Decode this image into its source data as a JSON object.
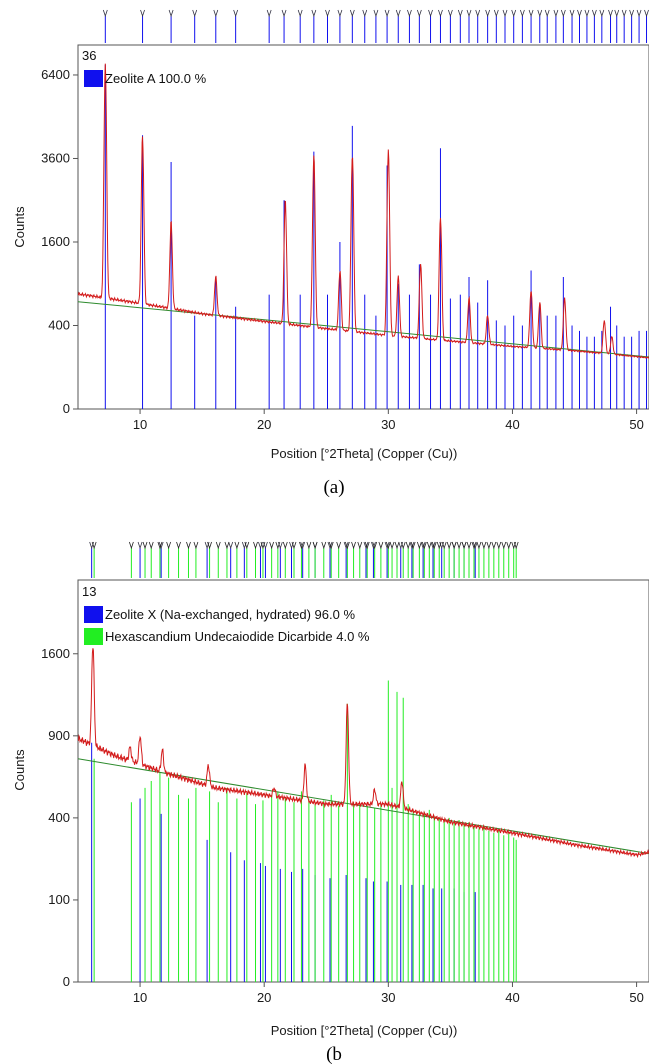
{
  "chart_data": [
    {
      "panel_label": "(a)",
      "corner_number": "36",
      "type": "line",
      "xlabel": "Position [°2Theta] (Copper (Cu))",
      "ylabel": "Counts",
      "xlim": [
        5,
        51
      ],
      "x_ticks": [
        "10",
        "20",
        "30",
        "40",
        "50"
      ],
      "y_ticks": [
        "0",
        "400",
        "1600",
        "3600",
        "6400"
      ],
      "y_scale": "sqrt",
      "ylim": [
        0,
        7600
      ],
      "legend": [
        {
          "label": "Zeolite A 100.0 %",
          "color": "#1010ee"
        }
      ],
      "series": [
        {
          "style": "observed-pattern",
          "color": "#d31b1b",
          "baseline": [
            [
              5,
              760
            ],
            [
              10,
              640
            ],
            [
              15,
              520
            ],
            [
              20,
              440
            ],
            [
              25,
              370
            ],
            [
              30,
              310
            ],
            [
              35,
              265
            ],
            [
              40,
              225
            ],
            [
              45,
              195
            ],
            [
              51,
              150
            ]
          ],
          "peaks": [
            [
              7.2,
              6800
            ],
            [
              10.2,
              4300
            ],
            [
              12.5,
              2000
            ],
            [
              16.1,
              1000
            ],
            [
              21.7,
              2500
            ],
            [
              24.0,
              3700
            ],
            [
              26.1,
              1100
            ],
            [
              27.1,
              3700
            ],
            [
              30.0,
              3800
            ],
            [
              30.8,
              1000
            ],
            [
              32.6,
              1200
            ],
            [
              34.2,
              2100
            ],
            [
              36.5,
              700
            ],
            [
              38.0,
              500
            ],
            [
              41.5,
              800
            ],
            [
              42.2,
              650
            ],
            [
              44.2,
              700
            ],
            [
              47.4,
              450
            ],
            [
              48.0,
              300
            ]
          ]
        },
        {
          "style": "background",
          "color": "#2e8b2e",
          "points": [
            [
              5,
              660
            ],
            [
              51,
              155
            ]
          ]
        },
        {
          "style": "reference-sticks",
          "name": "Zeolite A 100.0 %",
          "color": "#1010ee",
          "positions": [
            7.2,
            10.2,
            12.5,
            14.4,
            16.1,
            17.7,
            20.4,
            21.6,
            22.9,
            24.0,
            25.1,
            26.1,
            27.1,
            28.1,
            29.0,
            29.9,
            30.8,
            31.7,
            32.5,
            33.4,
            34.2,
            35.0,
            35.8,
            36.5,
            37.2,
            38.0,
            38.7,
            39.4,
            40.1,
            40.8,
            41.5,
            42.2,
            42.8,
            43.5,
            44.1,
            44.8,
            45.4,
            46.0,
            46.6,
            47.2,
            47.9,
            48.4,
            49.0,
            49.6,
            50.2,
            50.8
          ],
          "values": [
            6800,
            4300,
            3500,
            500,
            1000,
            600,
            750,
            2500,
            750,
            3800,
            750,
            1600,
            4600,
            750,
            500,
            3400,
            900,
            750,
            1200,
            750,
            3900,
            700,
            750,
            1000,
            650,
            950,
            450,
            400,
            500,
            400,
            1100,
            600,
            500,
            500,
            1000,
            400,
            350,
            300,
            300,
            350,
            600,
            400,
            300,
            300,
            350,
            350
          ]
        }
      ]
    },
    {
      "panel_label": "(b",
      "corner_number": "13",
      "type": "line",
      "xlabel": "Position [°2Theta] (Copper (Cu))",
      "ylabel": "Counts",
      "xlim": [
        5,
        51
      ],
      "x_ticks": [
        "10",
        "20",
        "30",
        "40",
        "50"
      ],
      "y_ticks": [
        "0",
        "100",
        "400",
        "900",
        "1600"
      ],
      "y_scale": "sqrt",
      "ylim": [
        0,
        2400
      ],
      "legend": [
        {
          "label": "Zeolite X (Na-exchanged, hydrated) 96.0 %",
          "color": "#1010ee"
        },
        {
          "label": "Hexascandium Undecaiodide Dicarbide 4.0 %",
          "color": "#22ee22"
        }
      ],
      "series": [
        {
          "style": "observed-pattern",
          "color": "#d31b1b",
          "baseline": [
            [
              5,
              880
            ],
            [
              8,
              760
            ],
            [
              12,
              650
            ],
            [
              16,
              560
            ],
            [
              20,
              520
            ],
            [
              25,
              470
            ],
            [
              30,
              470
            ],
            [
              35,
              380
            ],
            [
              40,
              330
            ],
            [
              45,
              280
            ],
            [
              50,
              240
            ],
            [
              51,
              250
            ]
          ],
          "peaks": [
            [
              6.2,
              1700
            ],
            [
              9.2,
              820
            ],
            [
              10.0,
              900
            ],
            [
              11.8,
              800
            ],
            [
              15.5,
              700
            ],
            [
              18.3,
              500
            ],
            [
              20.8,
              560
            ],
            [
              23.3,
              700
            ],
            [
              26.7,
              1150
            ],
            [
              28.9,
              550
            ],
            [
              31.1,
              600
            ]
          ]
        },
        {
          "style": "background",
          "color": "#2e8b2e",
          "points": [
            [
              5,
              740
            ],
            [
              51,
              245
            ]
          ]
        },
        {
          "style": "reference-sticks",
          "name": "Zeolite X (Na-exchanged, hydrated) 96.0 %",
          "color": "#1010ee",
          "positions": [
            6.1,
            10.0,
            11.7,
            15.4,
            17.3,
            18.4,
            19.7,
            20.1,
            21.3,
            22.2,
            23.1,
            24.1,
            25.3,
            26.6,
            28.2,
            28.8,
            29.9,
            31.0,
            31.9,
            32.8,
            33.6,
            34.3,
            35.3,
            36.1,
            37.0
          ],
          "values": [
            850,
            500,
            420,
            300,
            250,
            220,
            210,
            200,
            190,
            180,
            190,
            170,
            160,
            170,
            160,
            150,
            150,
            140,
            140,
            140,
            130,
            130,
            130,
            120,
            120
          ]
        },
        {
          "style": "reference-sticks",
          "name": "Hexascandium Undecaiodide Dicarbide 4.0 %",
          "color": "#22ee22",
          "positions": [
            6.3,
            9.3,
            10.4,
            10.9,
            11.6,
            12.3,
            13.1,
            13.9,
            14.5,
            15.6,
            16.3,
            17.0,
            17.8,
            18.6,
            19.3,
            19.9,
            20.6,
            21.1,
            21.7,
            22.4,
            23.0,
            23.6,
            24.1,
            24.8,
            25.4,
            26.0,
            26.7,
            27.2,
            27.7,
            28.3,
            28.9,
            29.4,
            30.0,
            30.3,
            30.7,
            31.2,
            31.6,
            32.0,
            32.5,
            32.9,
            33.3,
            33.7,
            34.1,
            34.5,
            34.9,
            35.3,
            35.7,
            36.1,
            36.5,
            36.9,
            37.3,
            37.7,
            38.1,
            38.5,
            38.9,
            39.3,
            39.7,
            40.1,
            40.3
          ],
          "values": [
            740,
            480,
            560,
            600,
            650,
            620,
            520,
            500,
            560,
            540,
            480,
            560,
            500,
            530,
            470,
            490,
            520,
            540,
            500,
            480,
            540,
            500,
            470,
            490,
            520,
            460,
            1150,
            480,
            470,
            460,
            450,
            470,
            1350,
            560,
            1250,
            1200,
            470,
            440,
            420,
            430,
            440,
            410,
            400,
            390,
            400,
            380,
            390,
            370,
            380,
            360,
            350,
            360,
            340,
            330,
            340,
            320,
            330,
            310,
            300
          ]
        }
      ]
    }
  ]
}
